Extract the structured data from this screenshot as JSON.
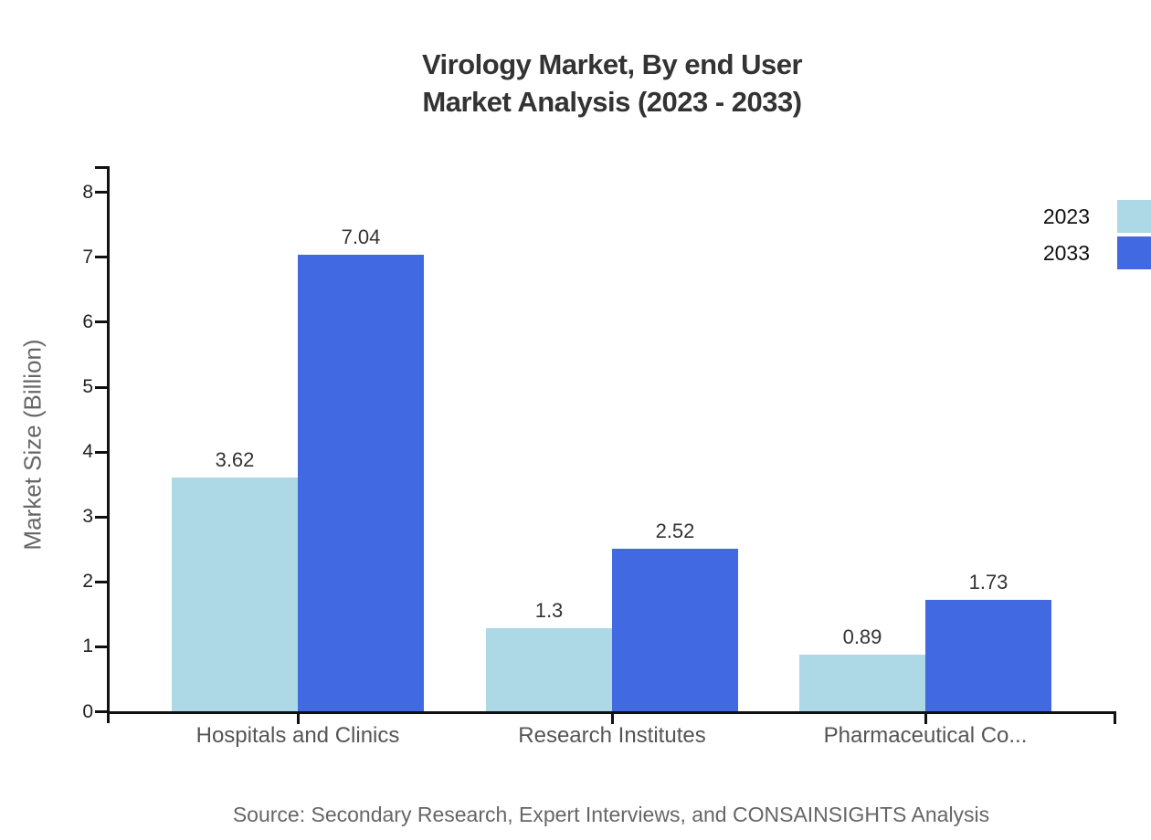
{
  "title": {
    "line1": "Virology Market, By end User",
    "line2": "Market Analysis (2023 - 2033)"
  },
  "source_note": "Source: Secondary Research, Expert Interviews, and CONSAINSIGHTS Analysis",
  "chart_data": {
    "type": "bar",
    "title": "Virology Market, By end User Market Analysis (2023 - 2033)",
    "ylabel": "Market Size (Billion)",
    "xlabel": "",
    "categories": [
      "Hospitals and Clinics",
      "Research Institutes",
      "Pharmaceutical Co..."
    ],
    "series": [
      {
        "name": "2023",
        "color": "#add8e6",
        "values": [
          3.62,
          1.3,
          0.89
        ],
        "labels": [
          "3.62",
          "1.3",
          "0.89"
        ]
      },
      {
        "name": "2033",
        "color": "#4169e1",
        "values": [
          7.04,
          2.52,
          1.73
        ],
        "labels": [
          "7.04",
          "2.52",
          "1.73"
        ]
      }
    ],
    "ylim": [
      0,
      8.4
    ],
    "yticks": [
      0,
      1,
      2,
      3,
      4,
      5,
      6,
      7,
      8
    ],
    "grid": false,
    "legend_position": "top-right",
    "value_labels_shown": true
  },
  "colors": {
    "series_2023": "#add8e6",
    "series_2033": "#4169e1",
    "axis": "#111111",
    "title_text": "#333333",
    "tick_text": "#222222",
    "category_text": "#555555",
    "muted_text": "#666666",
    "background": "#ffffff"
  }
}
